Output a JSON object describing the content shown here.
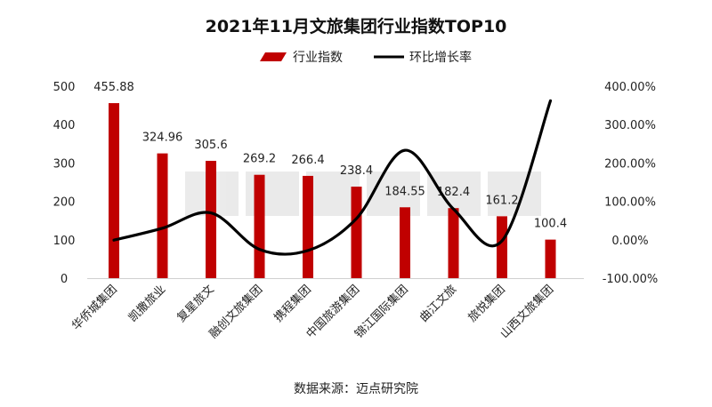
{
  "chart_data": {
    "type": "bar",
    "title": "2021年11月文旅集团行业指数TOP10",
    "categories": [
      "华侨城集团",
      "凯撒旅业",
      "复星旅文",
      "融创文旅集团",
      "携程集团",
      "中国旅游集团",
      "锦江国际集团",
      "曲江文旅",
      "旅悦集团",
      "山西文旅集团"
    ],
    "series": [
      {
        "name": "行业指数",
        "type": "bar",
        "axis": "left",
        "color": "#c00000",
        "values": [
          455.88,
          324.96,
          305.6,
          269.2,
          266.4,
          238.4,
          184.55,
          182.4,
          161.2,
          100.4
        ],
        "labels": [
          "455.88",
          "324.96",
          "305.6",
          "269.2",
          "266.4",
          "238.4",
          "184.55",
          "182.4",
          "161.2",
          "100.4"
        ]
      },
      {
        "name": "环比增长率",
        "type": "line",
        "axis": "right",
        "color": "#000000",
        "values": [
          -1,
          30,
          70,
          -25,
          -28,
          55,
          233,
          80,
          -3,
          362
        ]
      }
    ],
    "y_left": {
      "min": 0,
      "max": 500,
      "ticks": [
        "0",
        "100",
        "200",
        "300",
        "400",
        "500"
      ]
    },
    "y_right": {
      "min": -100,
      "max": 400,
      "ticks": [
        "-100.00%",
        "0.00%",
        "100.00%",
        "200.00%",
        "300.00%",
        "400.00%"
      ]
    },
    "grid": false,
    "legend_position": "top-center",
    "source_note": "数据来源：迈点研究院"
  }
}
